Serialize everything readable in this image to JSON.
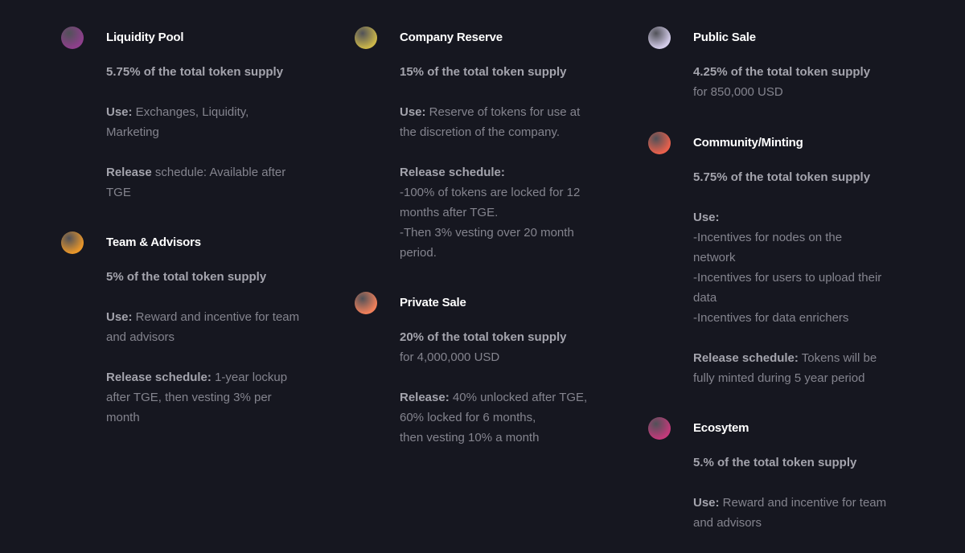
{
  "items": [
    {
      "title": "Liquidity Pool",
      "color": "#8e3f8c",
      "paras": [
        [
          {
            "b": "5.75% of the total token supply",
            "t": ""
          }
        ],
        [
          {
            "b": "Use:",
            "t": " Exchanges, Liquidity,"
          },
          {
            "b": "",
            "t": "Marketing"
          }
        ],
        [
          {
            "b": "Release",
            "t": " schedule: Available after"
          },
          {
            "b": "",
            "t": "TGE"
          }
        ]
      ]
    },
    {
      "title": "Team & Advisors",
      "color": "#e8962a",
      "paras": [
        [
          {
            "b": "5% of the total token supply",
            "t": ""
          }
        ],
        [
          {
            "b": "Use:",
            "t": " Reward and incentive for team"
          },
          {
            "b": "",
            "t": "and advisors"
          }
        ],
        [
          {
            "b": "Release schedule:",
            "t": " 1-year lockup"
          },
          {
            "b": "",
            "t": "after TGE, then vesting 3% per"
          },
          {
            "b": "",
            "t": "month"
          }
        ]
      ]
    },
    {
      "title": "Company Reserve",
      "color": "#cbb64a",
      "paras": [
        [
          {
            "b": "15% of the total token supply",
            "t": ""
          }
        ],
        [
          {
            "b": "Use:",
            "t": " Reserve of tokens for use at"
          },
          {
            "b": "",
            "t": "the discretion of the company."
          }
        ],
        [
          {
            "b": "Release schedule:",
            "t": ""
          },
          {
            "b": "",
            "t": "-100% of tokens are locked for 12"
          },
          {
            "b": "",
            "t": "months after TGE."
          },
          {
            "b": "",
            "t": "-Then 3% vesting over 20 month"
          },
          {
            "b": "",
            "t": "period."
          }
        ]
      ]
    },
    {
      "title": "Private Sale",
      "color": "#f0805a",
      "paras": [
        [
          {
            "b": "20% of the total token supply",
            "t": ""
          },
          {
            "b": "",
            "t": "for 4,000,000 USD"
          }
        ],
        [
          {
            "b": "Release:",
            "t": " 40% unlocked after TGE,"
          },
          {
            "b": "",
            "t": "60% locked for 6 months,"
          },
          {
            "b": "",
            "t": "then vesting 10% a month"
          }
        ]
      ]
    },
    {
      "title": "Public Sale",
      "color": "#d2cbe8",
      "paras": [
        [
          {
            "b": "4.25% of the total token supply",
            "t": ""
          },
          {
            "b": "",
            "t": "for 850,000 USD"
          }
        ]
      ]
    },
    {
      "title": "Community/Minting",
      "color": "#e8604c",
      "paras": [
        [
          {
            "b": "5.75% of the total token supply",
            "t": ""
          }
        ],
        [
          {
            "b": "Use:",
            "t": ""
          },
          {
            "b": "",
            "t": "-Incentives for nodes on the"
          },
          {
            "b": "",
            "t": "network"
          },
          {
            "b": "",
            "t": "-Incentives for users to upload their"
          },
          {
            "b": "",
            "t": "data"
          },
          {
            "b": "",
            "t": "-Incentives for data enrichers"
          }
        ],
        [
          {
            "b": "Release schedule:",
            "t": " Tokens will be"
          },
          {
            "b": "",
            "t": "fully minted during 5 year period"
          }
        ]
      ]
    },
    {
      "title": "Ecosytem",
      "color": "#c23a7a",
      "paras": [
        [
          {
            "b": "5.% of the total token supply",
            "t": ""
          }
        ],
        [
          {
            "b": "Use:",
            "t": " Reward and incentive for team"
          },
          {
            "b": "",
            "t": "and advisors"
          }
        ]
      ]
    }
  ]
}
